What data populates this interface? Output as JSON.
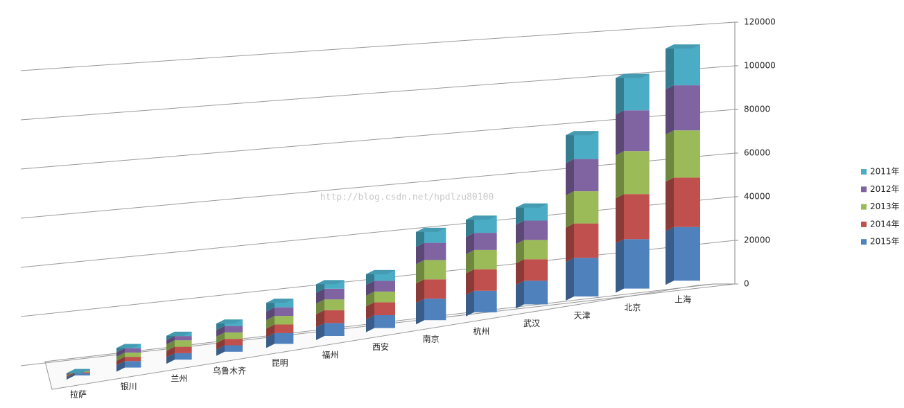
{
  "chart_data": {
    "type": "bar3d",
    "categories": [
      "拉萨",
      "银川",
      "兰州",
      "乌鲁木齐",
      "昆明",
      "福州",
      "西安",
      "南京",
      "杭州",
      "武汉",
      "天津",
      "北京",
      "上海"
    ],
    "series": [
      {
        "name": "2015年",
        "color": "#4f81bd",
        "values": [
          1000,
          3000,
          3000,
          3000,
          5000,
          6000,
          6000,
          10000,
          10000,
          11000,
          18000,
          23000,
          25000
        ]
      },
      {
        "name": "2014年",
        "color": "#c0504d",
        "values": [
          500,
          2000,
          3000,
          3000,
          4000,
          6000,
          6000,
          9000,
          10000,
          10000,
          16000,
          21000,
          23000
        ]
      },
      {
        "name": "2013年",
        "color": "#9bbb59",
        "values": [
          500,
          2000,
          3000,
          3000,
          4000,
          5000,
          5000,
          9000,
          9000,
          9000,
          15000,
          20000,
          22000
        ]
      },
      {
        "name": "2012年",
        "color": "#8064a2",
        "values": [
          500,
          2000,
          2000,
          3000,
          4000,
          5000,
          5000,
          8000,
          8000,
          9000,
          15000,
          19000,
          21000
        ]
      },
      {
        "name": "2011年",
        "color": "#4bacc6",
        "values": [
          500,
          2000,
          2000,
          3000,
          4000,
          4000,
          5000,
          7000,
          8000,
          8000,
          13000,
          17000,
          19000
        ]
      }
    ],
    "ylim": [
      0,
      120000
    ],
    "yticks": [
      0,
      20000,
      40000,
      60000,
      80000,
      100000,
      120000
    ],
    "grid": true,
    "legend": "right",
    "watermark": "http://blog.csdn.net/hpdlzu80100"
  }
}
